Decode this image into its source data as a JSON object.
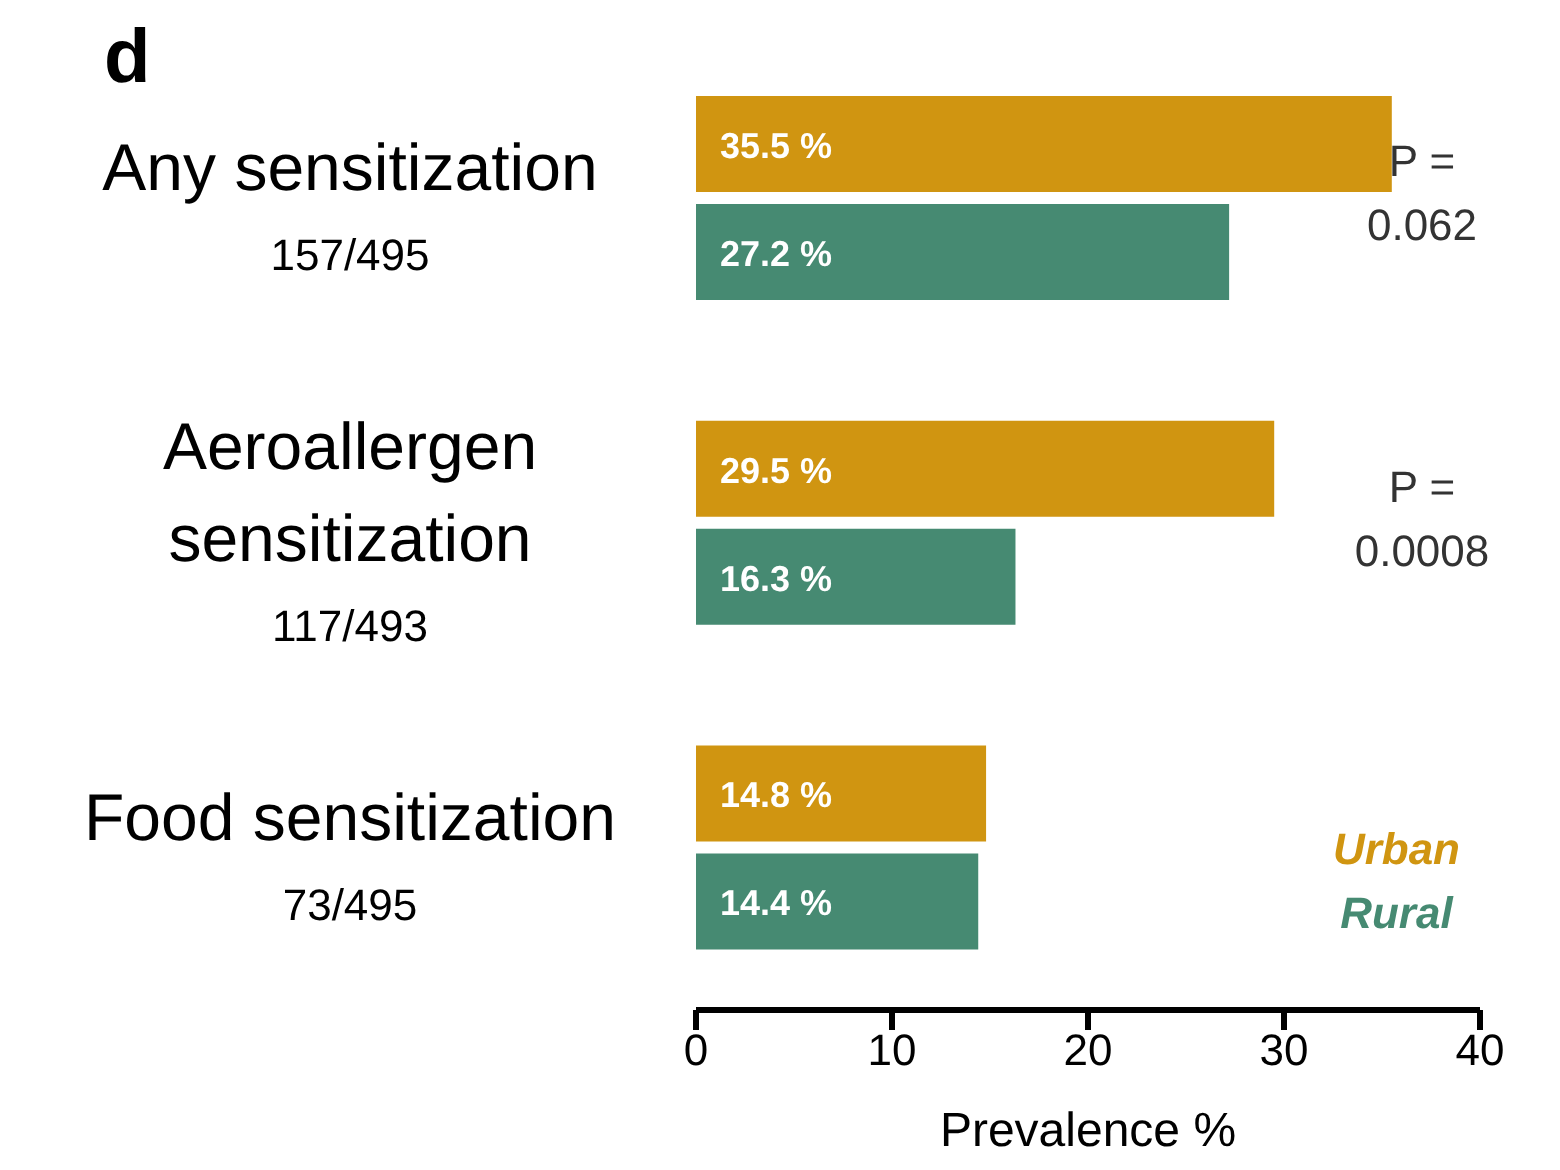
{
  "chart_data": {
    "type": "bar",
    "orientation": "horizontal",
    "title": "d",
    "xlabel": "Prevalence %",
    "categories": [
      "Any sensitization",
      "Aeroallergen sensitization",
      "Food sensitization"
    ],
    "series": [
      {
        "name": "Urban",
        "color": "#d09511",
        "values": [
          35.5,
          29.5,
          14.8
        ],
        "value_labels": [
          "35.5 %",
          "29.5 %",
          "14.8 %"
        ]
      },
      {
        "name": "Rural",
        "color": "#468a72",
        "values": [
          27.2,
          16.3,
          14.4
        ],
        "value_labels": [
          "27.2 %",
          "16.3 %",
          "14.4 %"
        ]
      }
    ],
    "xlim": [
      0,
      40
    ],
    "xticks": [
      0,
      10,
      20,
      30,
      40
    ],
    "grid": false,
    "legend": "bottom right",
    "annotations": [
      "157/495",
      "117/493",
      "73/495",
      "P =\n0.062",
      "P =\n0.0008"
    ]
  }
}
